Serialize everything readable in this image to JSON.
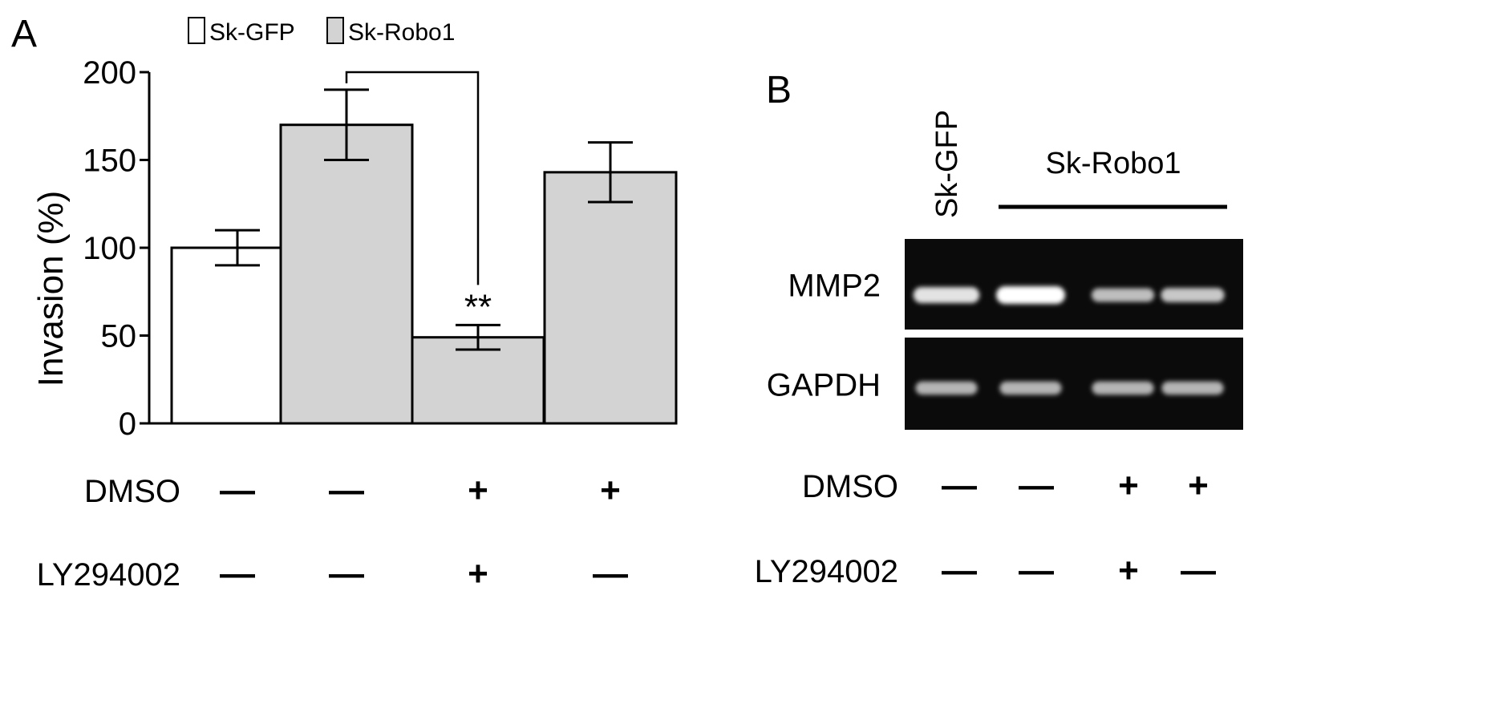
{
  "panel_a": {
    "label": "A",
    "chart_data": {
      "type": "bar",
      "title": "",
      "xlabel": "",
      "ylabel": "Invasion (%)",
      "ylim": [
        0,
        200
      ],
      "yticks": [
        0,
        50,
        100,
        150,
        200
      ],
      "legend": {
        "placement": "top",
        "entries": [
          {
            "name": "Sk-GFP",
            "color": "#ffffff"
          },
          {
            "name": "Sk-Robo1",
            "color": "#d3d3d3"
          }
        ]
      },
      "bars": [
        {
          "series": "Sk-GFP",
          "value": 100,
          "error": 10,
          "color": "#ffffff"
        },
        {
          "series": "Sk-Robo1",
          "value": 170,
          "error": 20,
          "color": "#d3d3d3"
        },
        {
          "series": "Sk-Robo1",
          "value": 49,
          "error": 7,
          "color": "#d3d3d3"
        },
        {
          "series": "Sk-Robo1",
          "value": 143,
          "error": 17,
          "color": "#d3d3d3"
        }
      ],
      "significance": {
        "from": 1,
        "to": 2,
        "at": 200,
        "label": "**"
      },
      "treatments": [
        {
          "name": "DMSO",
          "values": [
            "—",
            "—",
            "+",
            "+"
          ]
        },
        {
          "name": "LY294002",
          "values": [
            "—",
            "—",
            "+",
            "—"
          ]
        }
      ]
    }
  },
  "panel_b": {
    "label": "B",
    "lane_label_gfp": "Sk-GFP",
    "group_label_robo": "Sk-Robo1",
    "blots": [
      {
        "name": "MMP2",
        "band_intensity": [
          0.85,
          1.0,
          0.65,
          0.7
        ]
      },
      {
        "name": "GAPDH",
        "band_intensity": [
          0.6,
          0.6,
          0.6,
          0.6
        ]
      }
    ],
    "treatments": [
      {
        "name": "DMSO",
        "values": [
          "—",
          "—",
          "+",
          "+"
        ]
      },
      {
        "name": "LY294002",
        "values": [
          "—",
          "—",
          "+",
          "—"
        ]
      }
    ]
  }
}
